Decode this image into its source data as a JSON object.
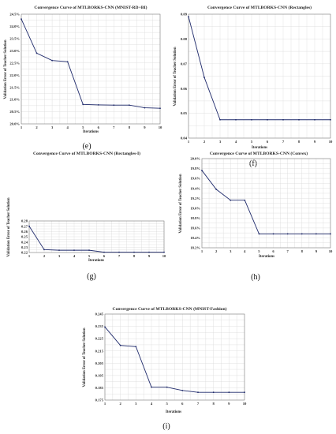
{
  "colors": {
    "series": "#1f2a6b",
    "grid": "#d9d9d9",
    "axis": "#7f7f7f"
  },
  "chart_data": [
    {
      "type": "line",
      "caption": "(e)",
      "title": "Convergence Curve of MTLBORKS-CNN (MNIST-RD+BI)",
      "xlabel": "Iterations",
      "ylabel": "Validation Error of Teacher Solution",
      "x": [
        1,
        2,
        3,
        4,
        5,
        6,
        7,
        8,
        9,
        10
      ],
      "values": [
        24.3,
        22.9,
        22.6,
        22.55,
        20.8,
        20.78,
        20.77,
        20.77,
        20.66,
        20.64
      ],
      "ylim": [
        20.0,
        24.5
      ],
      "yticks": [
        20.0,
        20.5,
        21.0,
        21.5,
        22.0,
        22.5,
        23.0,
        23.5,
        24.0,
        24.5
      ],
      "ytick_labels": [
        "20.0%",
        "20.5%",
        "21.0%",
        "21.5%",
        "22.0%",
        "22.5%",
        "23.0%",
        "23.5%",
        "24.0%",
        "24.5%"
      ],
      "grid": true
    },
    {
      "type": "line",
      "caption": "(f)",
      "title": "Convergence Curve of MTLBORKS-CNN (Rectangles)",
      "xlabel": "Iterations",
      "ylabel": "Validation Error of Teacher Solution",
      "x": [
        1,
        2,
        3,
        4,
        5,
        6,
        7,
        8,
        9,
        10
      ],
      "values": [
        0.089,
        0.0645,
        0.0474,
        0.0474,
        0.0474,
        0.0474,
        0.0474,
        0.0474,
        0.0474,
        0.0474
      ],
      "ylim": [
        0.04,
        0.09
      ],
      "yticks": [
        0.04,
        0.05,
        0.06,
        0.07,
        0.08,
        0.09
      ],
      "ytick_labels": [
        "0.04",
        "0.05",
        "0.06",
        "0.07",
        "0.08",
        "0.09"
      ],
      "grid": true
    },
    {
      "type": "line",
      "caption": "(g)",
      "title": "Convergence Curve of MTLBORKS-CNN (Rectangles-I)",
      "xlabel": "Iterations",
      "ylabel": "Validation Error of Teacher Solution",
      "x": [
        1,
        2,
        3,
        4,
        5,
        6,
        7,
        8,
        9,
        10
      ],
      "values": [
        0.27,
        0.2255,
        0.2243,
        0.2243,
        0.2243,
        0.2206,
        0.2206,
        0.2206,
        0.2206,
        0.2206
      ],
      "ylim": [
        0.22,
        0.28
      ],
      "yticks": [
        0.22,
        0.23,
        0.24,
        0.25,
        0.26,
        0.27,
        0.28
      ],
      "ytick_labels": [
        "0.22",
        "0.23",
        "0.24",
        "0.25",
        "0.26",
        "0.27",
        "0.28"
      ],
      "grid": true
    },
    {
      "type": "line",
      "caption": "(h)",
      "title": "Convergence Curve of MTLBORKS-CNN (Convex)",
      "xlabel": "Iterations",
      "ylabel": "Validation Error of Teacher Solution",
      "x": [
        1,
        2,
        3,
        4,
        5,
        6,
        7,
        8,
        9,
        10
      ],
      "values": [
        19.76,
        19.38,
        19.16,
        19.16,
        18.48,
        18.48,
        18.48,
        18.48,
        18.48,
        18.48
      ],
      "ylim": [
        18.2,
        20.0
      ],
      "yticks": [
        18.2,
        18.4,
        18.6,
        18.8,
        19.0,
        19.2,
        19.4,
        19.6,
        19.8,
        20.0
      ],
      "ytick_labels": [
        "18.2%",
        "18.4%",
        "18.6%",
        "18.8%",
        "19.0%",
        "19.2%",
        "19.4%",
        "19.6%",
        "19.8%",
        "20.0%"
      ],
      "grid": true
    },
    {
      "type": "line",
      "caption": "(i)",
      "title": "Convergence Curve of MTLBORKS-CNN (MNIST-Fashion)",
      "xlabel": "Iterations",
      "ylabel": "Validation Error of Teacher Solution",
      "x": [
        1,
        2,
        3,
        4,
        5,
        6,
        7,
        8,
        9,
        10
      ],
      "values": [
        0.2345,
        0.2195,
        0.2185,
        0.1855,
        0.1855,
        0.1828,
        0.1813,
        0.1813,
        0.1813,
        0.1813
      ],
      "ylim": [
        0.175,
        0.245
      ],
      "yticks": [
        0.175,
        0.185,
        0.195,
        0.205,
        0.215,
        0.225,
        0.235,
        0.245
      ],
      "ytick_labels": [
        "0.175",
        "0.185",
        "0.195",
        "0.205",
        "0.215",
        "0.225",
        "0.235",
        "0.245"
      ],
      "grid": true
    }
  ]
}
